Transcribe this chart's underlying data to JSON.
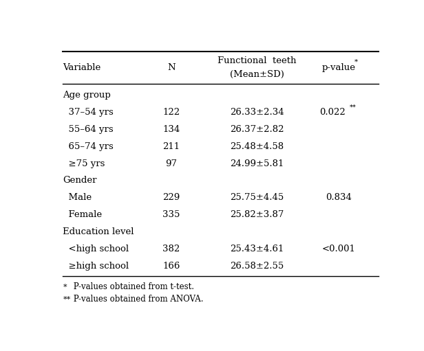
{
  "col_headers_line1": [
    "Variable",
    "N",
    "Functional  teeth",
    "p-value*"
  ],
  "col_headers_line2": [
    "",
    "",
    "(Mean±SD)",
    ""
  ],
  "rows": [
    {
      "label": "Age group",
      "indent": 0,
      "n": "",
      "mean_sd": "",
      "pvalue": "",
      "pvalue_sup": ""
    },
    {
      "label": "  37–54 yrs",
      "indent": 1,
      "n": "122",
      "mean_sd": "26.33±2.34",
      "pvalue": "0.022",
      "pvalue_sup": "**"
    },
    {
      "label": "  55–64 yrs",
      "indent": 1,
      "n": "134",
      "mean_sd": "26.37±2.82",
      "pvalue": "",
      "pvalue_sup": ""
    },
    {
      "label": "  65–74 yrs",
      "indent": 1,
      "n": "211",
      "mean_sd": "25.48±4.58",
      "pvalue": "",
      "pvalue_sup": ""
    },
    {
      "label": "  ≥75 yrs",
      "indent": 1,
      "n": "97",
      "mean_sd": "24.99±5.81",
      "pvalue": "",
      "pvalue_sup": ""
    },
    {
      "label": "Gender",
      "indent": 0,
      "n": "",
      "mean_sd": "",
      "pvalue": "",
      "pvalue_sup": ""
    },
    {
      "label": "  Male",
      "indent": 1,
      "n": "229",
      "mean_sd": "25.75±4.45",
      "pvalue": "0.834",
      "pvalue_sup": ""
    },
    {
      "label": "  Female",
      "indent": 1,
      "n": "335",
      "mean_sd": "25.82±3.87",
      "pvalue": "",
      "pvalue_sup": ""
    },
    {
      "label": "Education level",
      "indent": 0,
      "n": "",
      "mean_sd": "",
      "pvalue": "",
      "pvalue_sup": ""
    },
    {
      "label": "  <high school",
      "indent": 1,
      "n": "382",
      "mean_sd": "25.43±4.61",
      "pvalue": "<0.001",
      "pvalue_sup": ""
    },
    {
      "label": "  ≥high school",
      "indent": 1,
      "n": "166",
      "mean_sd": "26.58±2.55",
      "pvalue": "",
      "pvalue_sup": ""
    }
  ],
  "footnote1_sup": "*",
  "footnote1_text": " P-values obtained from t-test.",
  "footnote2_sup": "**",
  "footnote2_text": " P-values obtained from ANOVA.",
  "bg_color": "#ffffff",
  "text_color": "#000000",
  "font_size": 9.5,
  "header_font_size": 9.5
}
